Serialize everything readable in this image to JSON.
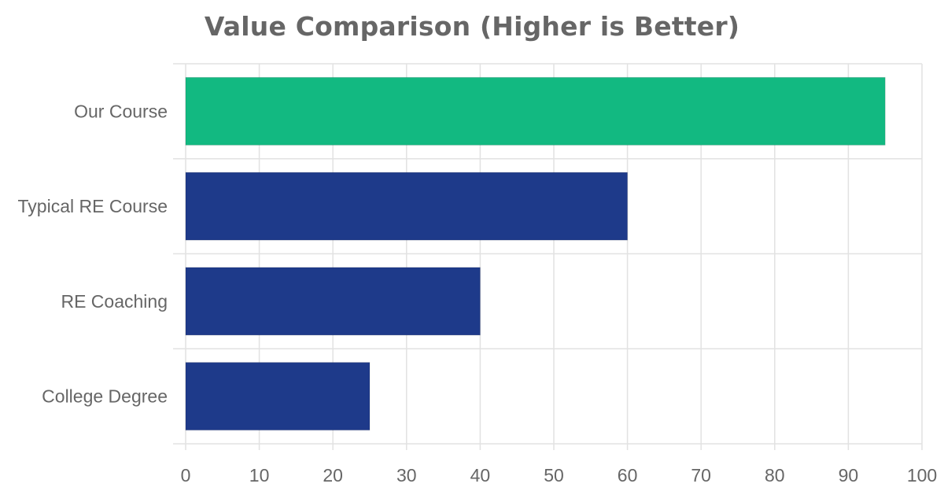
{
  "chart_data": {
    "type": "bar",
    "orientation": "horizontal",
    "title": "Value Comparison (Higher is Better)",
    "categories": [
      "Our Course",
      "Typical RE Course",
      "RE Coaching",
      "College Degree"
    ],
    "values": [
      95,
      60,
      40,
      25
    ],
    "bar_colors": [
      "#12b981",
      "#1e3a8a",
      "#1e3a8a",
      "#1e3a8a"
    ],
    "xlim": [
      0,
      100
    ],
    "xticks": [
      0,
      10,
      20,
      30,
      40,
      50,
      60,
      70,
      80,
      90,
      100
    ],
    "grid": true,
    "legend": "none"
  }
}
